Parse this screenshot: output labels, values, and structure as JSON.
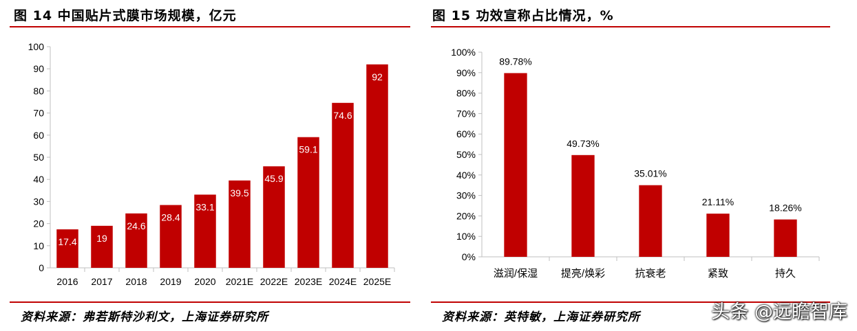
{
  "left": {
    "title": "图 14 中国贴片式膜市场规模，亿元",
    "source": "资料来源：弗若斯特沙利文，上海证券研究所",
    "chart_data": {
      "type": "bar",
      "title": "图 14 中国贴片式膜市场规模，亿元",
      "categories": [
        "2016",
        "2017",
        "2018",
        "2019",
        "2020",
        "2021E",
        "2022E",
        "2023E",
        "2024E",
        "2025E"
      ],
      "values": [
        17.4,
        19,
        24.6,
        28.4,
        33.1,
        39.5,
        45.9,
        59.1,
        74.6,
        92
      ],
      "data_labels": [
        "17.4",
        "19",
        "24.6",
        "28.4",
        "33.1",
        "39.5",
        "45.9",
        "59.1",
        "74.6",
        "92"
      ],
      "ylim": [
        0,
        100
      ],
      "yticks": [
        0,
        10,
        20,
        30,
        40,
        50,
        60,
        70,
        80,
        90,
        100
      ],
      "ytick_labels": [
        "0",
        "10",
        "20",
        "30",
        "40",
        "50",
        "60",
        "70",
        "80",
        "90",
        "100"
      ],
      "bar_color": "#c00000",
      "label_color": "#ffffff",
      "label_position": "inside",
      "grid": false,
      "legend": "none"
    }
  },
  "right": {
    "title": "图 15 功效宣称占比情况，%",
    "source": "资料来源：英特敏，上海证券研究所",
    "chart_data": {
      "type": "bar",
      "title": "图 15 功效宣称占比情况，%",
      "categories": [
        "滋润/保湿",
        "提亮/焕彩",
        "抗衰老",
        "紧致",
        "持久"
      ],
      "values": [
        89.78,
        49.73,
        35.01,
        21.11,
        18.26
      ],
      "data_labels": [
        "89.78%",
        "49.73%",
        "35.01%",
        "21.11%",
        "18.26%"
      ],
      "ylim": [
        0,
        100
      ],
      "yticks": [
        0,
        10,
        20,
        30,
        40,
        50,
        60,
        70,
        80,
        90,
        100
      ],
      "ytick_labels": [
        "0%",
        "10%",
        "20%",
        "30%",
        "40%",
        "50%",
        "60%",
        "70%",
        "80%",
        "90%",
        "100%"
      ],
      "bar_color": "#c00000",
      "label_color": "#000000",
      "label_position": "above",
      "grid": false,
      "legend": "none"
    }
  },
  "watermark": "头条 @远瞻智库",
  "colors": {
    "accent": "#c00000",
    "text": "#000000",
    "axis": "#bfbfbf"
  }
}
